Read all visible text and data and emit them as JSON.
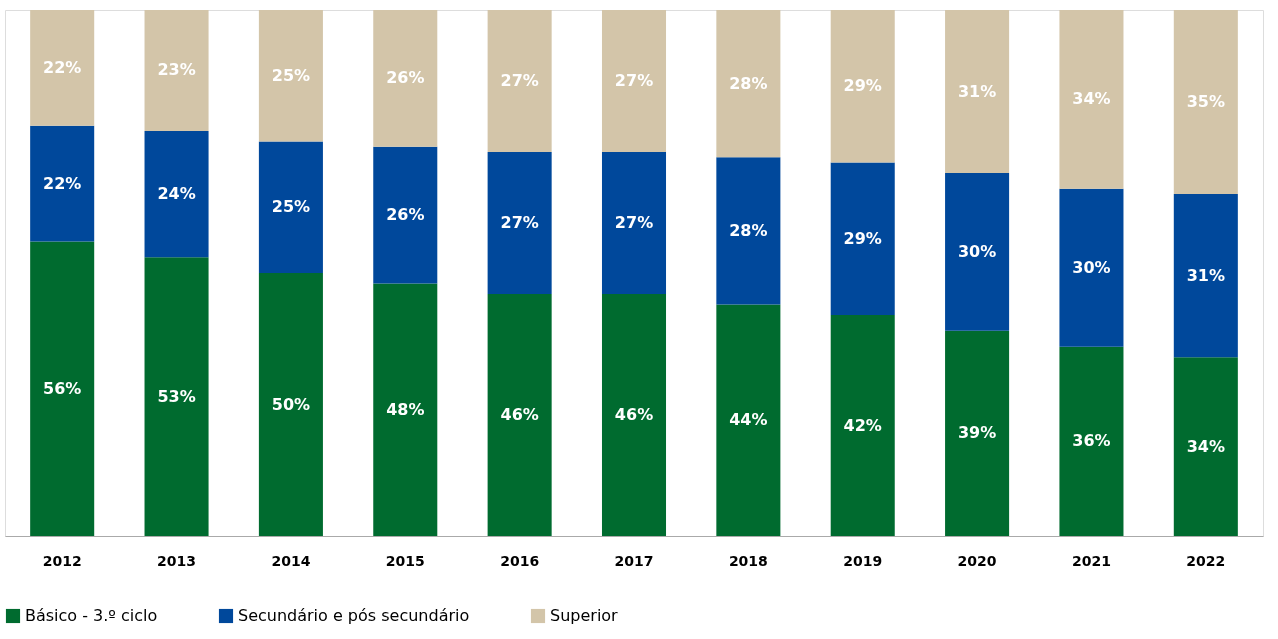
{
  "chart_data": {
    "type": "bar",
    "stacked": true,
    "legend": "bottom",
    "grid": false,
    "tick_labels": "x",
    "categories": [
      "2012",
      "2013",
      "2014",
      "2015",
      "2016",
      "2017",
      "2018",
      "2019",
      "2020",
      "2021",
      "2022"
    ],
    "series": [
      {
        "name": "Básico - 3.º ciclo",
        "color": "#006b2f",
        "values": [
          56,
          53,
          50,
          48,
          46,
          46,
          44,
          42,
          39,
          36,
          34
        ],
        "value_labels": [
          "56%",
          "53%",
          "50%",
          "48%",
          "46%",
          "46%",
          "44%",
          "42%",
          "39%",
          "36%",
          "34%"
        ]
      },
      {
        "name": "Secundário e pós secundário",
        "color": "#00489b",
        "values": [
          22,
          24,
          25,
          26,
          27,
          27,
          28,
          29,
          30,
          30,
          31
        ],
        "value_labels": [
          "22%",
          "24%",
          "25%",
          "26%",
          "27%",
          "27%",
          "28%",
          "29%",
          "30%",
          "30%",
          "31%"
        ]
      },
      {
        "name": "Superior",
        "color": "#d3c5a9",
        "values": [
          22,
          23,
          25,
          26,
          27,
          27,
          28,
          29,
          31,
          34,
          35
        ],
        "value_labels": [
          "22%",
          "23%",
          "25%",
          "26%",
          "27%",
          "27%",
          "28%",
          "29%",
          "31%",
          "34%",
          "35%"
        ]
      }
    ]
  }
}
